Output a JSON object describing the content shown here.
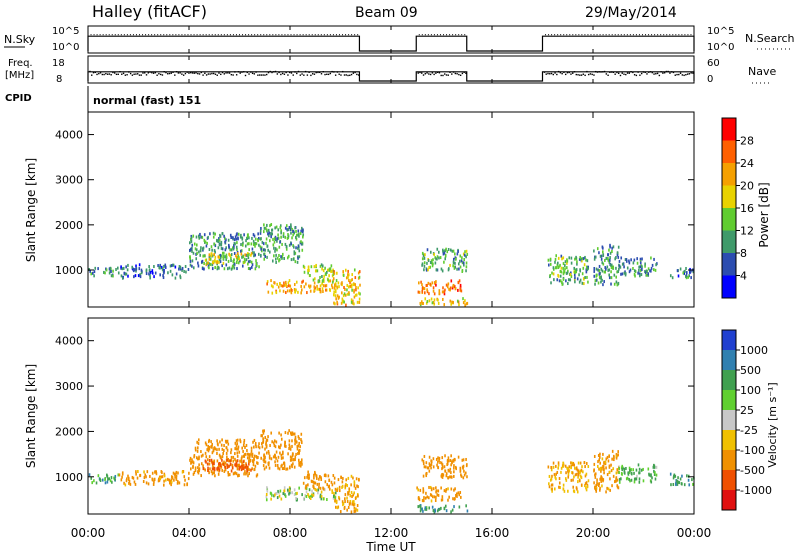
{
  "header": {
    "station": "Halley (fitACF)",
    "beam": "Beam 09",
    "date": "29/May/2014"
  },
  "nsky_panel": {
    "left_label": "N.Sky",
    "left_ticks": [
      "10^5",
      "10^0"
    ],
    "right_label": "N.Search",
    "right_ticks": [
      "10^5",
      "10^0"
    ]
  },
  "freq_panel": {
    "left_label_1": "Freq.",
    "left_label_2": "[MHz]",
    "left_ticks": [
      "18",
      "8"
    ],
    "right_label": "Nave",
    "right_ticks": [
      "60",
      "0"
    ]
  },
  "cpid": {
    "label": "CPID",
    "value": "normal (fast) 151"
  },
  "x_axis": {
    "label": "Time UT",
    "ticks": [
      "00:00",
      "04:00",
      "08:00",
      "12:00",
      "16:00",
      "20:00",
      "00:00"
    ]
  },
  "power_colorbar": {
    "label": "Power [dB]",
    "ticks": [
      "28",
      "24",
      "20",
      "16",
      "12",
      "8",
      "4"
    ],
    "colors": [
      "#0000ff",
      "#2c4db0",
      "#3f9a6a",
      "#60cc30",
      "#e8d200",
      "#f5a000",
      "#ff6000",
      "#ff0000"
    ]
  },
  "velocity_colorbar": {
    "label": "Velocity [m s⁻¹]",
    "ticks": [
      "1000",
      "500",
      "100",
      "25",
      "-25",
      "-100",
      "-500",
      "-1000"
    ],
    "colors": [
      "#2040d0",
      "#3080b0",
      "#40a050",
      "#60d030",
      "#c8c8c8",
      "#f0c000",
      "#f09000",
      "#f05000",
      "#e01010"
    ]
  },
  "chart_data": [
    {
      "type": "line",
      "title": "N.Sky / N.Search",
      "x_unit": "hour UT",
      "ylim_log10": [
        0,
        5
      ],
      "on_intervals_hours": [
        [
          0.0,
          10.75
        ],
        [
          13.0,
          15.0
        ],
        [
          18.0,
          24.0
        ]
      ],
      "level_log10": 3.2
    },
    {
      "type": "scatter",
      "title": "Freq. / Nave",
      "ylim": [
        8,
        18
      ],
      "on_intervals_hours": [
        [
          0.0,
          10.75
        ],
        [
          13.0,
          15.0
        ],
        [
          18.0,
          24.0
        ]
      ],
      "freq_mhz_approx": 12
    },
    {
      "type": "heatmap",
      "title": "Power",
      "xlabel": "Time UT",
      "ylabel": "Slant Range [km]",
      "xlim_hours": [
        0,
        24
      ],
      "ylim_km": [
        180,
        4500
      ],
      "yticks": [
        1000,
        2000,
        3000,
        4000
      ],
      "blobs": [
        {
          "t0": 0.0,
          "t1": 1.2,
          "r0": 880,
          "r1": 1080,
          "power": 10
        },
        {
          "t0": 1.2,
          "t1": 4.0,
          "r0": 850,
          "r1": 1150,
          "power": 7
        },
        {
          "t0": 4.0,
          "t1": 6.8,
          "r0": 1050,
          "r1": 1850,
          "power": 10
        },
        {
          "t0": 4.5,
          "t1": 6.5,
          "r0": 1150,
          "r1": 1400,
          "power": 18
        },
        {
          "t0": 6.8,
          "t1": 8.5,
          "r0": 1200,
          "r1": 2050,
          "power": 11
        },
        {
          "t0": 7.0,
          "t1": 9.8,
          "r0": 520,
          "r1": 800,
          "power": 22
        },
        {
          "t0": 8.5,
          "t1": 9.7,
          "r0": 750,
          "r1": 1150,
          "power": 15
        },
        {
          "t0": 9.7,
          "t1": 10.75,
          "r0": 250,
          "r1": 1050,
          "power": 20
        },
        {
          "t0": 13.0,
          "t1": 15.0,
          "r0": 250,
          "r1": 400,
          "power": 20
        },
        {
          "t0": 13.0,
          "t1": 14.8,
          "r0": 500,
          "r1": 800,
          "power": 25
        },
        {
          "t0": 13.2,
          "t1": 15.0,
          "r0": 1000,
          "r1": 1500,
          "power": 12
        },
        {
          "t0": 18.2,
          "t1": 19.8,
          "r0": 700,
          "r1": 1350,
          "power": 12
        },
        {
          "t0": 20.0,
          "t1": 21.0,
          "r0": 700,
          "r1": 1600,
          "power": 10
        },
        {
          "t0": 21.0,
          "t1": 22.5,
          "r0": 900,
          "r1": 1300,
          "power": 9
        },
        {
          "t0": 23.0,
          "t1": 24.0,
          "r0": 850,
          "r1": 1100,
          "power": 8
        }
      ]
    },
    {
      "type": "heatmap",
      "title": "Velocity",
      "xlabel": "Time UT",
      "ylabel": "Slant Range [km]",
      "xlim_hours": [
        0,
        24
      ],
      "ylim_km": [
        180,
        4500
      ],
      "yticks": [
        1000,
        2000,
        3000,
        4000
      ],
      "blobs": [
        {
          "t0": 0.0,
          "t1": 1.2,
          "r0": 880,
          "r1": 1080,
          "velocity": 60
        },
        {
          "t0": 1.2,
          "t1": 4.0,
          "r0": 850,
          "r1": 1150,
          "velocity": -150
        },
        {
          "t0": 4.0,
          "t1": 6.8,
          "r0": 1050,
          "r1": 1850,
          "velocity": -300
        },
        {
          "t0": 4.5,
          "t1": 6.5,
          "r0": 1150,
          "r1": 1400,
          "velocity": -600
        },
        {
          "t0": 6.8,
          "t1": 8.5,
          "r0": 1200,
          "r1": 2050,
          "velocity": -400
        },
        {
          "t0": 7.0,
          "t1": 9.8,
          "r0": 520,
          "r1": 800,
          "velocity": 0
        },
        {
          "t0": 8.5,
          "t1": 9.7,
          "r0": 750,
          "r1": 1150,
          "velocity": -200
        },
        {
          "t0": 9.7,
          "t1": 10.75,
          "r0": 250,
          "r1": 1050,
          "velocity": -120
        },
        {
          "t0": 13.0,
          "t1": 15.0,
          "r0": 250,
          "r1": 400,
          "velocity": 80
        },
        {
          "t0": 13.0,
          "t1": 14.8,
          "r0": 500,
          "r1": 800,
          "velocity": -150
        },
        {
          "t0": 13.2,
          "t1": 15.0,
          "r0": 1000,
          "r1": 1500,
          "velocity": -200
        },
        {
          "t0": 18.2,
          "t1": 19.8,
          "r0": 700,
          "r1": 1350,
          "velocity": -100
        },
        {
          "t0": 20.0,
          "t1": 21.0,
          "r0": 700,
          "r1": 1600,
          "velocity": -150
        },
        {
          "t0": 21.0,
          "t1": 22.5,
          "r0": 900,
          "r1": 1300,
          "velocity": 50
        },
        {
          "t0": 23.0,
          "t1": 24.0,
          "r0": 850,
          "r1": 1100,
          "velocity": 60
        }
      ]
    }
  ]
}
